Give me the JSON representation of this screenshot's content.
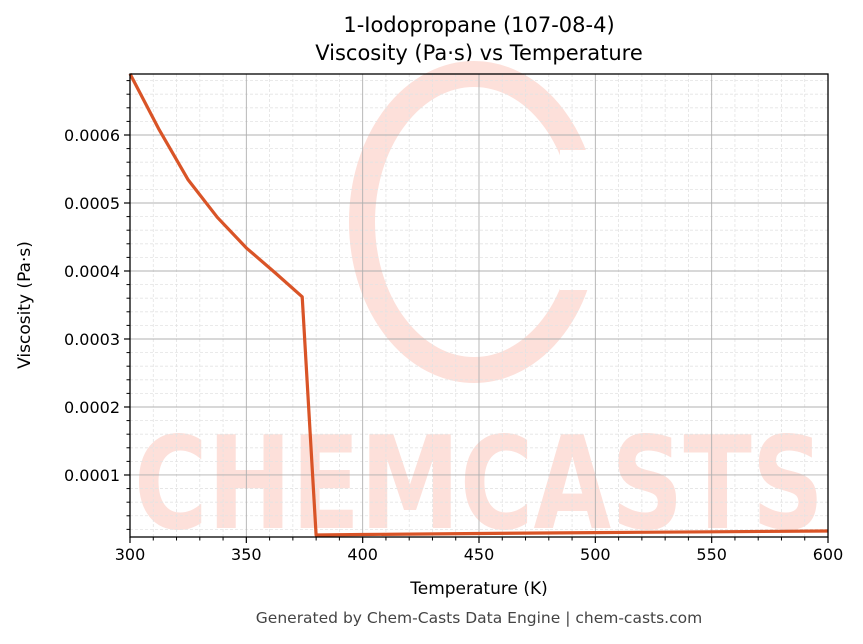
{
  "chart_data": {
    "type": "line",
    "title": "1-Iodopropane (107-08-4)",
    "subtitle": "Viscosity (Pa·s) vs Temperature",
    "xlabel": "Temperature (K)",
    "ylabel": "Viscosity (Pa·s)",
    "xlim": [
      300,
      600
    ],
    "ylim": [
      8.8e-06,
      0.00068971
    ],
    "x_ticks": [
      300,
      350,
      400,
      450,
      500,
      550,
      600
    ],
    "x_tick_labels": [
      "300",
      "350",
      "400",
      "450",
      "500",
      "550",
      "600"
    ],
    "y_ticks": [
      0.0001,
      0.0002,
      0.0003,
      0.0004,
      0.0005,
      0.0006
    ],
    "y_tick_labels": [
      "0.0001",
      "0.0002",
      "0.0003",
      "0.0004",
      "0.0005",
      "0.0006"
    ],
    "grid": true,
    "minor_grid": true,
    "legend": null,
    "series": [
      {
        "name": "Viscosity",
        "color": "#d95427",
        "x": [
          300,
          312.5,
          325,
          337.5,
          350,
          362.5,
          374,
          380,
          400,
          450,
          500,
          550,
          600
        ],
        "values": [
          0.00069,
          0.000608,
          0.000534,
          0.000479,
          0.000434,
          0.000397,
          0.000362,
          1.18e-05,
          1.25e-05,
          1.4e-05,
          1.53e-05,
          1.65e-05,
          1.76e-05
        ]
      }
    ],
    "watermark": "CHEMCASTS"
  },
  "footer": {
    "text": "Generated by Chem-Casts Data Engine | chem-casts.com"
  },
  "colors": {
    "line": "#d95427",
    "watermark": "#fde0da",
    "grid_major": "#b0b0b0",
    "grid_minor": "#e3e3e3",
    "axes": "#000000"
  }
}
